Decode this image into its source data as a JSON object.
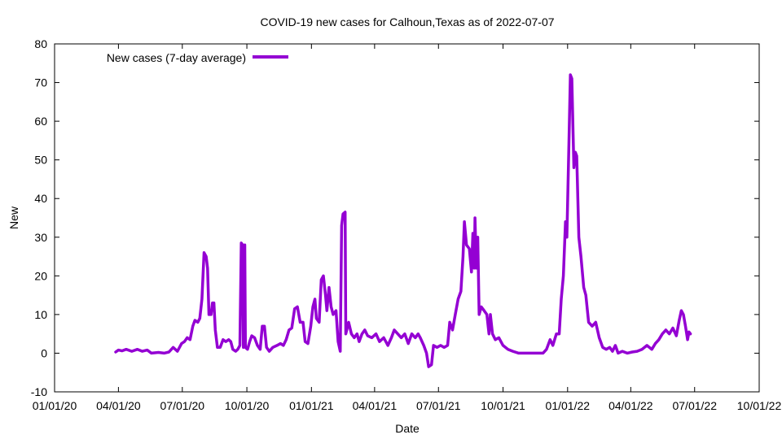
{
  "chart_data": {
    "type": "line",
    "title": "COVID-19 new cases for Calhoun,Texas as of 2022-07-07",
    "xlabel": "Date",
    "ylabel": "New",
    "xlim": [
      "2020-01-01",
      "2022-10-01"
    ],
    "ylim": [
      -10,
      80
    ],
    "x_ticks": [
      {
        "date": "2020-01-01",
        "label": "01/01/20"
      },
      {
        "date": "2020-04-01",
        "label": "04/01/20"
      },
      {
        "date": "2020-07-01",
        "label": "07/01/20"
      },
      {
        "date": "2020-10-01",
        "label": "10/01/20"
      },
      {
        "date": "2021-01-01",
        "label": "01/01/21"
      },
      {
        "date": "2021-04-01",
        "label": "04/01/21"
      },
      {
        "date": "2021-07-01",
        "label": "07/01/21"
      },
      {
        "date": "2021-10-01",
        "label": "10/01/21"
      },
      {
        "date": "2022-01-01",
        "label": "01/01/22"
      },
      {
        "date": "2022-04-01",
        "label": "04/01/22"
      },
      {
        "date": "2022-07-01",
        "label": "07/01/22"
      },
      {
        "date": "2022-10-01",
        "label": "10/01/22"
      }
    ],
    "y_ticks": [
      -10,
      0,
      10,
      20,
      30,
      40,
      50,
      60,
      70,
      80
    ],
    "grid": false,
    "legend": {
      "position": "top-left"
    },
    "colors": {
      "series": "#9400d3",
      "axis": "#000000",
      "background": "#ffffff"
    },
    "series": [
      {
        "name": "New cases (7-day average)",
        "points": [
          [
            "2020-03-28",
            0.3
          ],
          [
            "2020-04-01",
            0.8
          ],
          [
            "2020-04-06",
            0.6
          ],
          [
            "2020-04-12",
            1.0
          ],
          [
            "2020-04-20",
            0.5
          ],
          [
            "2020-04-28",
            1.0
          ],
          [
            "2020-05-05",
            0.5
          ],
          [
            "2020-05-12",
            0.8
          ],
          [
            "2020-05-18",
            0.0
          ],
          [
            "2020-05-28",
            0.2
          ],
          [
            "2020-06-05",
            0.0
          ],
          [
            "2020-06-12",
            0.3
          ],
          [
            "2020-06-18",
            1.5
          ],
          [
            "2020-06-24",
            0.5
          ],
          [
            "2020-06-30",
            2.5
          ],
          [
            "2020-07-04",
            3.0
          ],
          [
            "2020-07-08",
            4.0
          ],
          [
            "2020-07-12",
            3.5
          ],
          [
            "2020-07-16",
            7.0
          ],
          [
            "2020-07-19",
            8.5
          ],
          [
            "2020-07-23",
            8.0
          ],
          [
            "2020-07-26",
            9.0
          ],
          [
            "2020-07-29",
            14.0
          ],
          [
            "2020-08-01",
            26.0
          ],
          [
            "2020-08-04",
            25.0
          ],
          [
            "2020-08-06",
            22.0
          ],
          [
            "2020-08-08",
            10.0
          ],
          [
            "2020-08-11",
            10.0
          ],
          [
            "2020-08-13",
            13.0
          ],
          [
            "2020-08-15",
            13.0
          ],
          [
            "2020-08-17",
            6.0
          ],
          [
            "2020-08-20",
            1.5
          ],
          [
            "2020-08-24",
            1.5
          ],
          [
            "2020-08-28",
            3.5
          ],
          [
            "2020-09-01",
            3.0
          ],
          [
            "2020-09-05",
            3.5
          ],
          [
            "2020-09-08",
            3.0
          ],
          [
            "2020-09-11",
            1.0
          ],
          [
            "2020-09-15",
            0.5
          ],
          [
            "2020-09-18",
            1.0
          ],
          [
            "2020-09-21",
            2.0
          ],
          [
            "2020-09-23",
            28.5
          ],
          [
            "2020-09-25",
            28.0
          ],
          [
            "2020-09-26",
            1.5
          ],
          [
            "2020-09-28",
            28.0
          ],
          [
            "2020-09-29",
            1.5
          ],
          [
            "2020-10-02",
            1.0
          ],
          [
            "2020-10-05",
            3.0
          ],
          [
            "2020-10-08",
            4.5
          ],
          [
            "2020-10-12",
            4.0
          ],
          [
            "2020-10-16",
            2.0
          ],
          [
            "2020-10-20",
            1.0
          ],
          [
            "2020-10-23",
            7.0
          ],
          [
            "2020-10-26",
            7.0
          ],
          [
            "2020-10-29",
            1.5
          ],
          [
            "2020-11-02",
            0.5
          ],
          [
            "2020-11-07",
            1.5
          ],
          [
            "2020-11-13",
            2.0
          ],
          [
            "2020-11-18",
            2.5
          ],
          [
            "2020-11-22",
            2.0
          ],
          [
            "2020-11-26",
            3.5
          ],
          [
            "2020-11-30",
            6.0
          ],
          [
            "2020-12-04",
            6.5
          ],
          [
            "2020-12-08",
            11.5
          ],
          [
            "2020-12-12",
            12.0
          ],
          [
            "2020-12-16",
            8.0
          ],
          [
            "2020-12-20",
            8.0
          ],
          [
            "2020-12-23",
            3.0
          ],
          [
            "2020-12-27",
            2.5
          ],
          [
            "2020-12-31",
            7.0
          ],
          [
            "2021-01-03",
            12.0
          ],
          [
            "2021-01-06",
            14.0
          ],
          [
            "2021-01-08",
            9.0
          ],
          [
            "2021-01-12",
            8.0
          ],
          [
            "2021-01-15",
            19.0
          ],
          [
            "2021-01-18",
            20.0
          ],
          [
            "2021-01-21",
            15.0
          ],
          [
            "2021-01-23",
            11.0
          ],
          [
            "2021-01-26",
            17.0
          ],
          [
            "2021-01-29",
            12.0
          ],
          [
            "2021-02-01",
            10.0
          ],
          [
            "2021-02-05",
            11.0
          ],
          [
            "2021-02-08",
            3.0
          ],
          [
            "2021-02-11",
            0.5
          ],
          [
            "2021-02-13",
            33.0
          ],
          [
            "2021-02-15",
            36.0
          ],
          [
            "2021-02-18",
            36.5
          ],
          [
            "2021-02-19",
            5.0
          ],
          [
            "2021-02-23",
            8.0
          ],
          [
            "2021-02-27",
            5.0
          ],
          [
            "2021-03-03",
            4.0
          ],
          [
            "2021-03-07",
            5.0
          ],
          [
            "2021-03-10",
            3.0
          ],
          [
            "2021-03-14",
            5.0
          ],
          [
            "2021-03-18",
            6.0
          ],
          [
            "2021-03-22",
            4.5
          ],
          [
            "2021-03-28",
            4.0
          ],
          [
            "2021-04-03",
            5.0
          ],
          [
            "2021-04-08",
            3.0
          ],
          [
            "2021-04-14",
            4.0
          ],
          [
            "2021-04-20",
            2.0
          ],
          [
            "2021-04-25",
            4.0
          ],
          [
            "2021-04-29",
            6.0
          ],
          [
            "2021-05-04",
            5.0
          ],
          [
            "2021-05-09",
            4.0
          ],
          [
            "2021-05-14",
            5.0
          ],
          [
            "2021-05-19",
            2.5
          ],
          [
            "2021-05-24",
            5.0
          ],
          [
            "2021-05-29",
            4.0
          ],
          [
            "2021-06-02",
            5.0
          ],
          [
            "2021-06-05",
            4.0
          ],
          [
            "2021-06-10",
            2.0
          ],
          [
            "2021-06-14",
            0.0
          ],
          [
            "2021-06-17",
            -3.5
          ],
          [
            "2021-06-21",
            -3.0
          ],
          [
            "2021-06-24",
            2.0
          ],
          [
            "2021-06-29",
            1.5
          ],
          [
            "2021-07-04",
            2.0
          ],
          [
            "2021-07-09",
            1.5
          ],
          [
            "2021-07-14",
            2.0
          ],
          [
            "2021-07-17",
            8.0
          ],
          [
            "2021-07-21",
            6.0
          ],
          [
            "2021-07-25",
            10.0
          ],
          [
            "2021-07-29",
            14.0
          ],
          [
            "2021-08-02",
            16.0
          ],
          [
            "2021-08-05",
            25.0
          ],
          [
            "2021-08-07",
            34.0
          ],
          [
            "2021-08-10",
            28.0
          ],
          [
            "2021-08-14",
            27.0
          ],
          [
            "2021-08-17",
            21.0
          ],
          [
            "2021-08-19",
            31.0
          ],
          [
            "2021-08-21",
            22.0
          ],
          [
            "2021-08-22",
            35.0
          ],
          [
            "2021-08-24",
            22.0
          ],
          [
            "2021-08-26",
            30.0
          ],
          [
            "2021-08-28",
            10.0
          ],
          [
            "2021-08-31",
            12.0
          ],
          [
            "2021-09-04",
            11.0
          ],
          [
            "2021-09-08",
            10.0
          ],
          [
            "2021-09-11",
            5.0
          ],
          [
            "2021-09-13",
            10.0
          ],
          [
            "2021-09-16",
            5.0
          ],
          [
            "2021-09-20",
            3.5
          ],
          [
            "2021-09-25",
            4.0
          ],
          [
            "2021-10-01",
            2.0
          ],
          [
            "2021-10-08",
            1.0
          ],
          [
            "2021-10-15",
            0.5
          ],
          [
            "2021-10-23",
            0.0
          ],
          [
            "2021-11-01",
            0.0
          ],
          [
            "2021-11-10",
            0.0
          ],
          [
            "2021-11-19",
            0.0
          ],
          [
            "2021-11-27",
            0.0
          ],
          [
            "2021-12-02",
            1.0
          ],
          [
            "2021-12-07",
            3.5
          ],
          [
            "2021-12-11",
            2.0
          ],
          [
            "2021-12-16",
            5.0
          ],
          [
            "2021-12-20",
            5.0
          ],
          [
            "2021-12-23",
            14.0
          ],
          [
            "2021-12-26",
            20.0
          ],
          [
            "2021-12-29",
            34.0
          ],
          [
            "2021-12-31",
            30.0
          ],
          [
            "2022-01-03",
            55.0
          ],
          [
            "2022-01-05",
            72.0
          ],
          [
            "2022-01-07",
            71.0
          ],
          [
            "2022-01-10",
            48.0
          ],
          [
            "2022-01-12",
            52.0
          ],
          [
            "2022-01-14",
            51.0
          ],
          [
            "2022-01-17",
            30.0
          ],
          [
            "2022-01-20",
            25.0
          ],
          [
            "2022-01-24",
            17.0
          ],
          [
            "2022-01-27",
            15.0
          ],
          [
            "2022-01-31",
            8.0
          ],
          [
            "2022-02-05",
            7.0
          ],
          [
            "2022-02-10",
            8.0
          ],
          [
            "2022-02-15",
            4.0
          ],
          [
            "2022-02-20",
            1.5
          ],
          [
            "2022-02-25",
            1.0
          ],
          [
            "2022-03-02",
            1.5
          ],
          [
            "2022-03-06",
            0.5
          ],
          [
            "2022-03-10",
            2.0
          ],
          [
            "2022-03-14",
            0.0
          ],
          [
            "2022-03-20",
            0.5
          ],
          [
            "2022-03-27",
            0.0
          ],
          [
            "2022-04-03",
            0.3
          ],
          [
            "2022-04-10",
            0.5
          ],
          [
            "2022-04-17",
            1.0
          ],
          [
            "2022-04-24",
            2.0
          ],
          [
            "2022-05-01",
            1.0
          ],
          [
            "2022-05-06",
            2.5
          ],
          [
            "2022-05-11",
            3.5
          ],
          [
            "2022-05-16",
            5.0
          ],
          [
            "2022-05-21",
            6.0
          ],
          [
            "2022-05-26",
            5.0
          ],
          [
            "2022-05-31",
            6.5
          ],
          [
            "2022-06-05",
            4.5
          ],
          [
            "2022-06-09",
            8.5
          ],
          [
            "2022-06-12",
            11.0
          ],
          [
            "2022-06-15",
            10.0
          ],
          [
            "2022-06-18",
            7.0
          ],
          [
            "2022-06-21",
            3.5
          ],
          [
            "2022-06-23",
            5.5
          ],
          [
            "2022-06-25",
            5.0
          ]
        ]
      }
    ]
  }
}
